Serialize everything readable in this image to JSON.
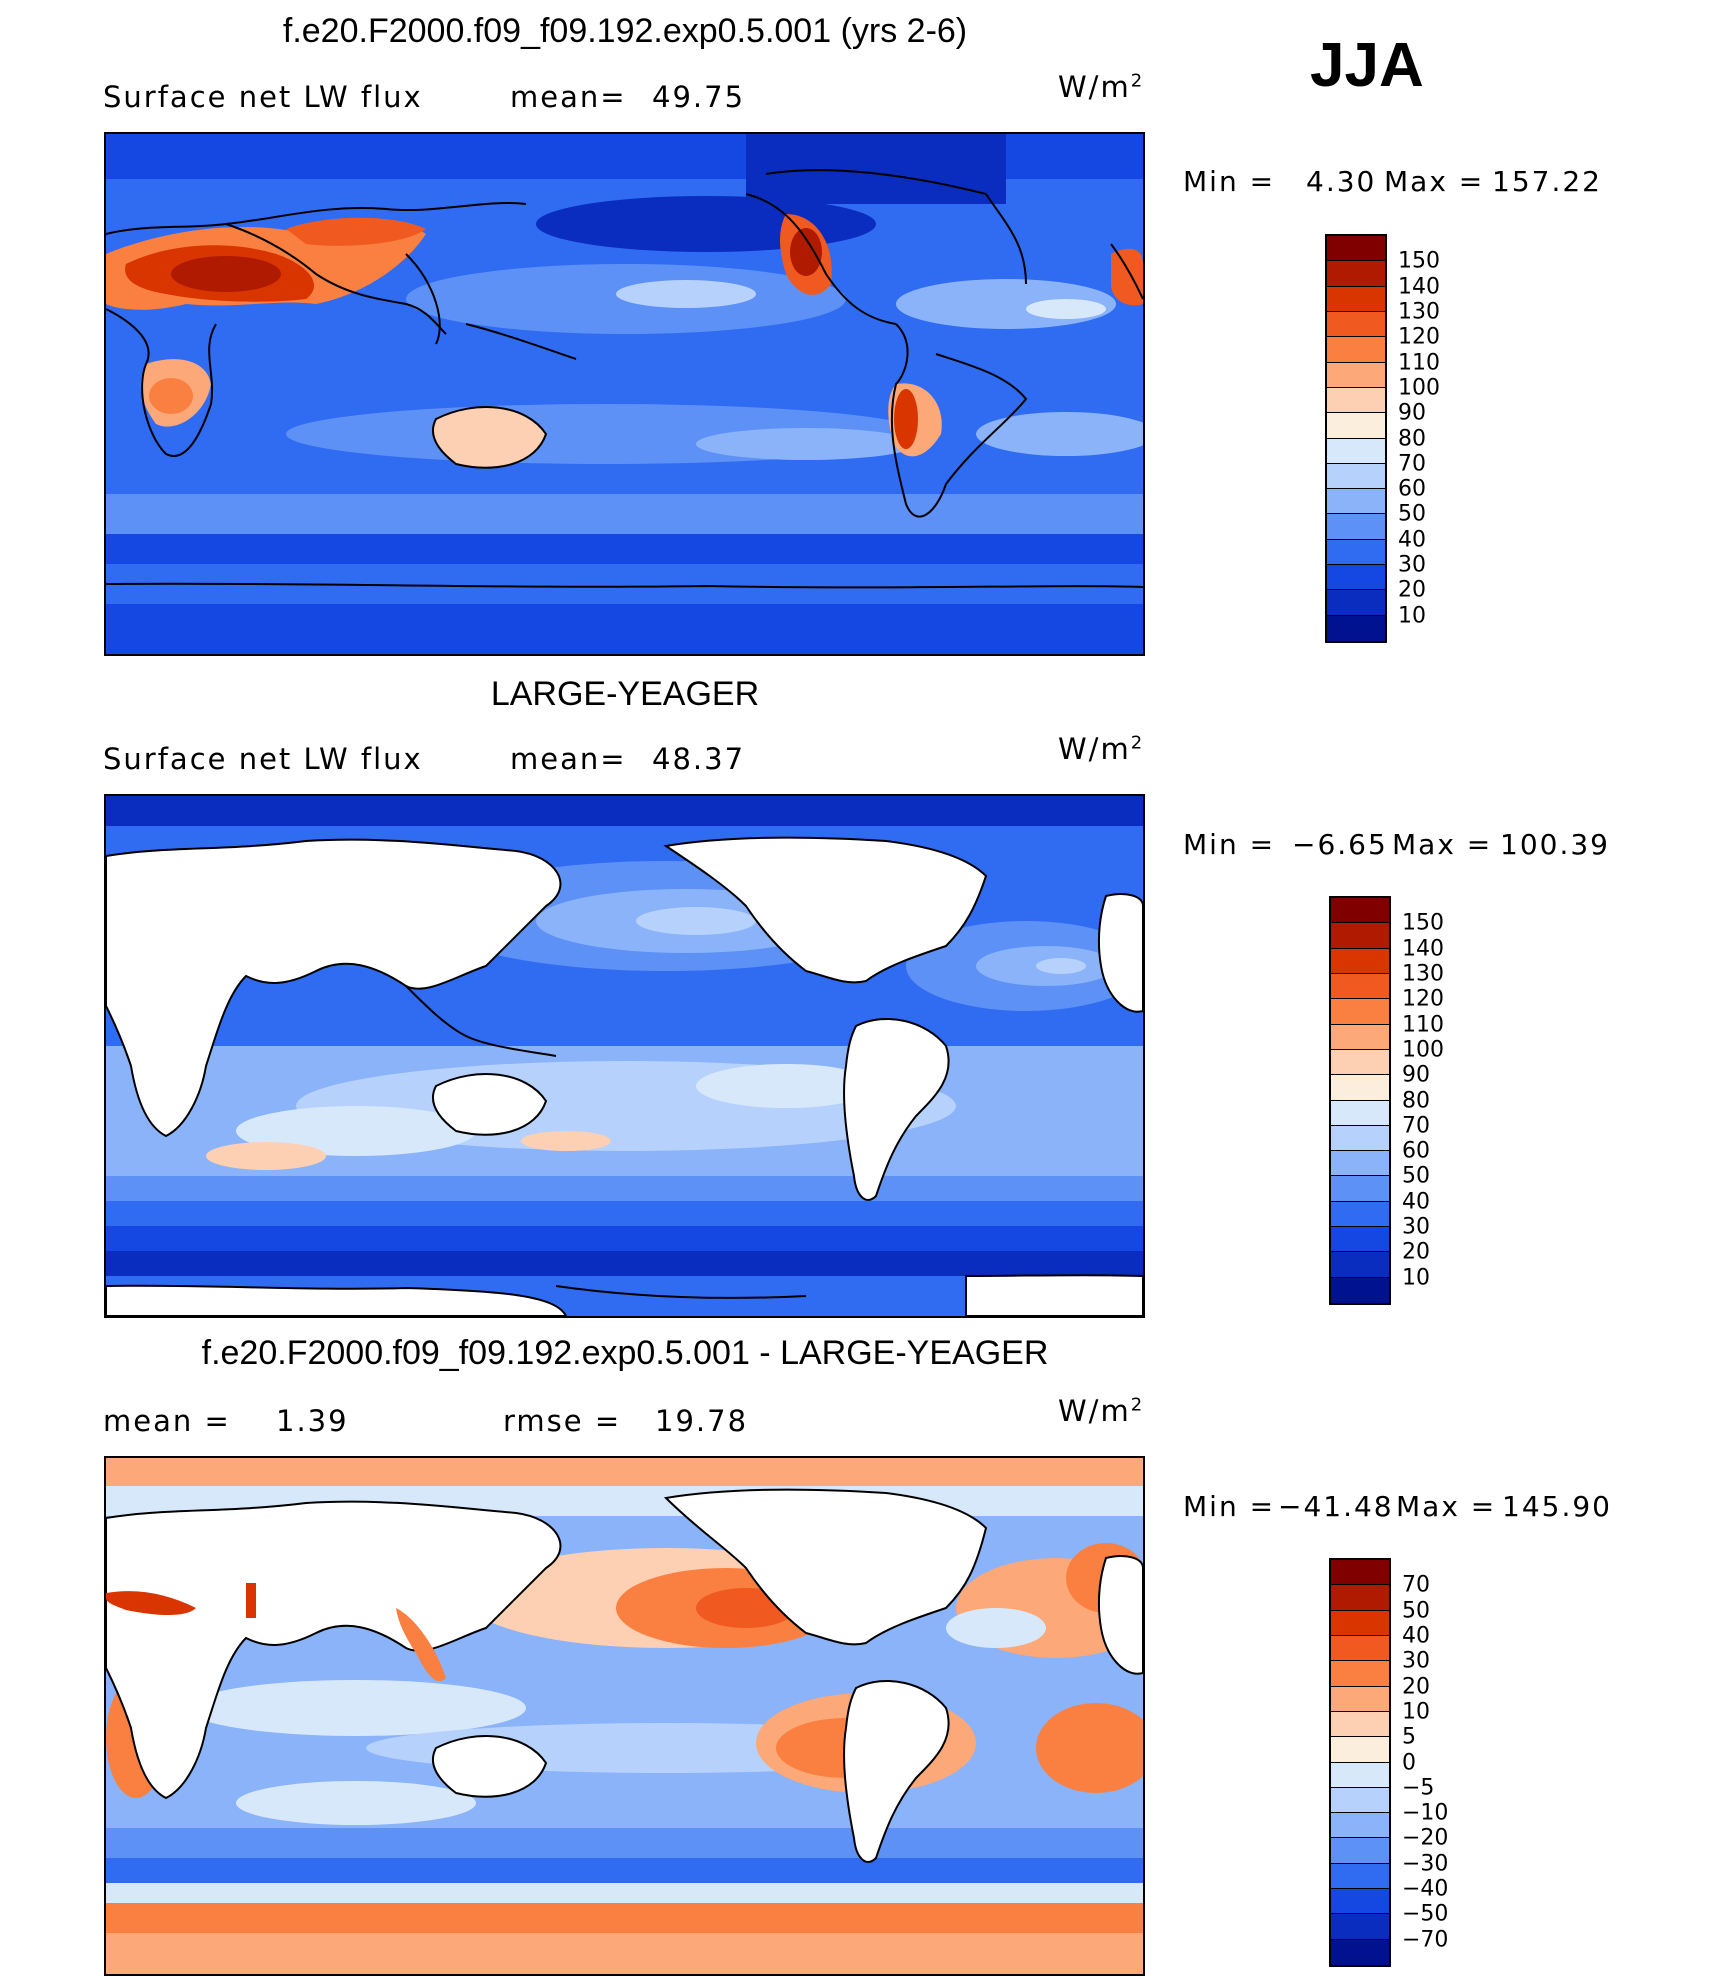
{
  "season": "JJA",
  "units_base": "W/m",
  "units_exp": "2",
  "panels": [
    {
      "title": "f.e20.F2000.f09_f09.192.exp0.5.001 (yrs 2-6)",
      "left_label": "Surface net LW flux",
      "stat_label": "mean=",
      "stat_value": "49.75",
      "min_label": "Min =",
      "min_value": "4.30",
      "max_label": "Max =",
      "max_value": "157.22",
      "colorbar": {
        "ticks": [
          "150",
          "140",
          "130",
          "120",
          "110",
          "100",
          "90",
          "80",
          "70",
          "60",
          "50",
          "40",
          "30",
          "20",
          "10"
        ],
        "colors": [
          "#800000",
          "#b01a00",
          "#d93500",
          "#f05a20",
          "#f98040",
          "#fca878",
          "#fdd0b4",
          "#fbeedd",
          "#d8e8fb",
          "#b6d1fb",
          "#8ab3f9",
          "#5d91f6",
          "#2f6cf2",
          "#1548e2",
          "#0a2cbf",
          "#00128f"
        ]
      }
    },
    {
      "title": "LARGE-YEAGER",
      "left_label": "Surface net LW flux",
      "stat_label": "mean=",
      "stat_value": "48.37",
      "min_label": "Min =",
      "min_value": "−6.65",
      "max_label": "Max =",
      "max_value": "100.39",
      "colorbar": {
        "ticks": [
          "150",
          "140",
          "130",
          "120",
          "110",
          "100",
          "90",
          "80",
          "70",
          "60",
          "50",
          "40",
          "30",
          "20",
          "10"
        ],
        "colors": [
          "#800000",
          "#b01a00",
          "#d93500",
          "#f05a20",
          "#f98040",
          "#fca878",
          "#fdd0b4",
          "#fbeedd",
          "#d8e8fb",
          "#b6d1fb",
          "#8ab3f9",
          "#5d91f6",
          "#2f6cf2",
          "#1548e2",
          "#0a2cbf",
          "#00128f"
        ]
      }
    },
    {
      "title": "f.e20.F2000.f09_f09.192.exp0.5.001 - LARGE-YEAGER",
      "left_label": "mean =",
      "left_value": "1.39",
      "stat_label": "rmse =",
      "stat_value": "19.78",
      "min_label": "Min =",
      "min_value": "−41.48",
      "max_label": "Max =",
      "max_value": "145.90",
      "colorbar": {
        "ticks": [
          "70",
          "50",
          "40",
          "30",
          "20",
          "10",
          "5",
          "0",
          "−5",
          "−10",
          "−20",
          "−30",
          "−40",
          "−50",
          "−70"
        ],
        "colors": [
          "#800000",
          "#b01a00",
          "#d93500",
          "#f05a20",
          "#f98040",
          "#fca878",
          "#fdd0b4",
          "#fbeedd",
          "#d8e8fb",
          "#b6d1fb",
          "#8ab3f9",
          "#5d91f6",
          "#2f6cf2",
          "#1548e2",
          "#0a2cbf",
          "#00128f"
        ]
      }
    }
  ]
}
